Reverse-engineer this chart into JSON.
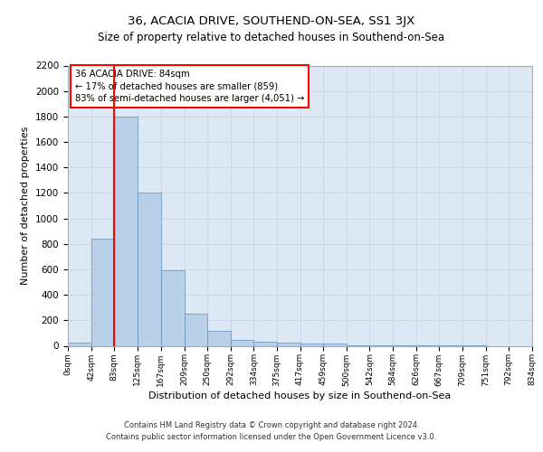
{
  "title": "36, ACACIA DRIVE, SOUTHEND-ON-SEA, SS1 3JX",
  "subtitle": "Size of property relative to detached houses in Southend-on-Sea",
  "xlabel": "Distribution of detached houses by size in Southend-on-Sea",
  "ylabel": "Number of detached properties",
  "footer_line1": "Contains HM Land Registry data © Crown copyright and database right 2024.",
  "footer_line2": "Contains public sector information licensed under the Open Government Licence v3.0.",
  "annotation_line1": "36 ACACIA DRIVE: 84sqm",
  "annotation_line2": "← 17% of detached houses are smaller (859)",
  "annotation_line3": "83% of semi-detached houses are larger (4,051) →",
  "bar_color": "#b8d0e8",
  "bar_edge_color": "#6090c0",
  "grid_color": "#c8d8e8",
  "background_color": "#dce8f4",
  "red_line_x": 83,
  "bin_edges": [
    0,
    42,
    83,
    125,
    167,
    209,
    250,
    292,
    334,
    375,
    417,
    459,
    500,
    542,
    584,
    626,
    667,
    709,
    751,
    792,
    834
  ],
  "bar_heights": [
    25,
    840,
    1800,
    1200,
    590,
    255,
    120,
    45,
    35,
    25,
    20,
    15,
    5,
    3,
    2,
    1,
    1,
    1,
    0,
    0
  ],
  "ylim": [
    0,
    2200
  ],
  "yticks": [
    0,
    200,
    400,
    600,
    800,
    1000,
    1200,
    1400,
    1600,
    1800,
    2000,
    2200
  ],
  "tick_labels": [
    "0sqm",
    "42sqm",
    "83sqm",
    "125sqm",
    "167sqm",
    "209sqm",
    "250sqm",
    "292sqm",
    "334sqm",
    "375sqm",
    "417sqm",
    "459sqm",
    "500sqm",
    "542sqm",
    "584sqm",
    "626sqm",
    "667sqm",
    "709sqm",
    "751sqm",
    "792sqm",
    "834sqm"
  ]
}
